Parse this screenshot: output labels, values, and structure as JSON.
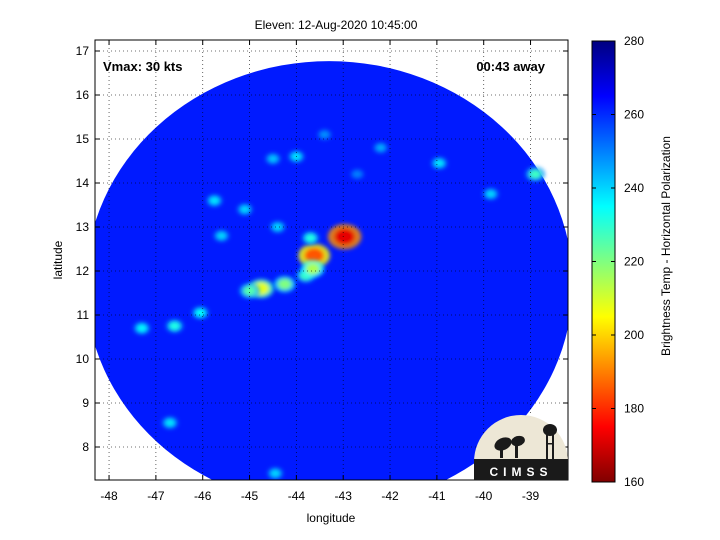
{
  "chart_data": {
    "type": "heatmap",
    "title": "Eleven: 12-Aug-2020 10:45:00",
    "xlabel": "longitude",
    "ylabel": "latitude",
    "xlim": [
      -48.3,
      -38.2
    ],
    "ylim": [
      7.25,
      17.25
    ],
    "xticks": [
      -48,
      -47,
      -46,
      -45,
      -44,
      -43,
      -42,
      -41,
      -40,
      -39
    ],
    "yticks": [
      8,
      9,
      10,
      11,
      12,
      13,
      14,
      15,
      16,
      17
    ],
    "grid": "dotted",
    "annotations": {
      "vmax": "Vmax: 30 kts",
      "away": "00:43 away"
    },
    "colorbar": {
      "label": "Brightness Temp - Horizontal Polarization",
      "range": [
        160,
        280
      ],
      "ticks": [
        160,
        180,
        200,
        220,
        240,
        260,
        280
      ]
    },
    "swath": {
      "center": [
        -43.3,
        11.7
      ],
      "radius_deg": 5.2,
      "background_value": 262
    },
    "features": [
      {
        "lon": -42.97,
        "lat": 12.78,
        "value": 172
      },
      {
        "lon": -43.62,
        "lat": 12.35,
        "value": 185
      },
      {
        "lon": -44.75,
        "lat": 11.6,
        "value": 208
      },
      {
        "lon": -44.25,
        "lat": 11.7,
        "value": 220
      },
      {
        "lon": -43.8,
        "lat": 11.9,
        "value": 228
      },
      {
        "lon": -43.65,
        "lat": 12.05,
        "value": 215
      },
      {
        "lon": -45.0,
        "lat": 11.55,
        "value": 225
      },
      {
        "lon": -43.7,
        "lat": 12.75,
        "value": 232
      },
      {
        "lon": -44.4,
        "lat": 13.0,
        "value": 240
      },
      {
        "lon": -45.6,
        "lat": 12.8,
        "value": 240
      },
      {
        "lon": -45.1,
        "lat": 13.4,
        "value": 240
      },
      {
        "lon": -45.75,
        "lat": 13.6,
        "value": 238
      },
      {
        "lon": -44.0,
        "lat": 14.6,
        "value": 238
      },
      {
        "lon": -44.5,
        "lat": 14.55,
        "value": 242
      },
      {
        "lon": -42.2,
        "lat": 14.8,
        "value": 245
      },
      {
        "lon": -40.95,
        "lat": 14.45,
        "value": 238
      },
      {
        "lon": -39.85,
        "lat": 13.75,
        "value": 240
      },
      {
        "lon": -38.9,
        "lat": 14.2,
        "value": 228
      },
      {
        "lon": -46.05,
        "lat": 11.05,
        "value": 235
      },
      {
        "lon": -46.6,
        "lat": 10.75,
        "value": 232
      },
      {
        "lon": -47.3,
        "lat": 10.7,
        "value": 236
      },
      {
        "lon": -46.7,
        "lat": 8.55,
        "value": 238
      },
      {
        "lon": -44.45,
        "lat": 7.4,
        "value": 240
      },
      {
        "lon": -43.4,
        "lat": 15.1,
        "value": 248
      },
      {
        "lon": -42.7,
        "lat": 14.2,
        "value": 250
      }
    ]
  },
  "logo": {
    "text": "CIMSS"
  }
}
